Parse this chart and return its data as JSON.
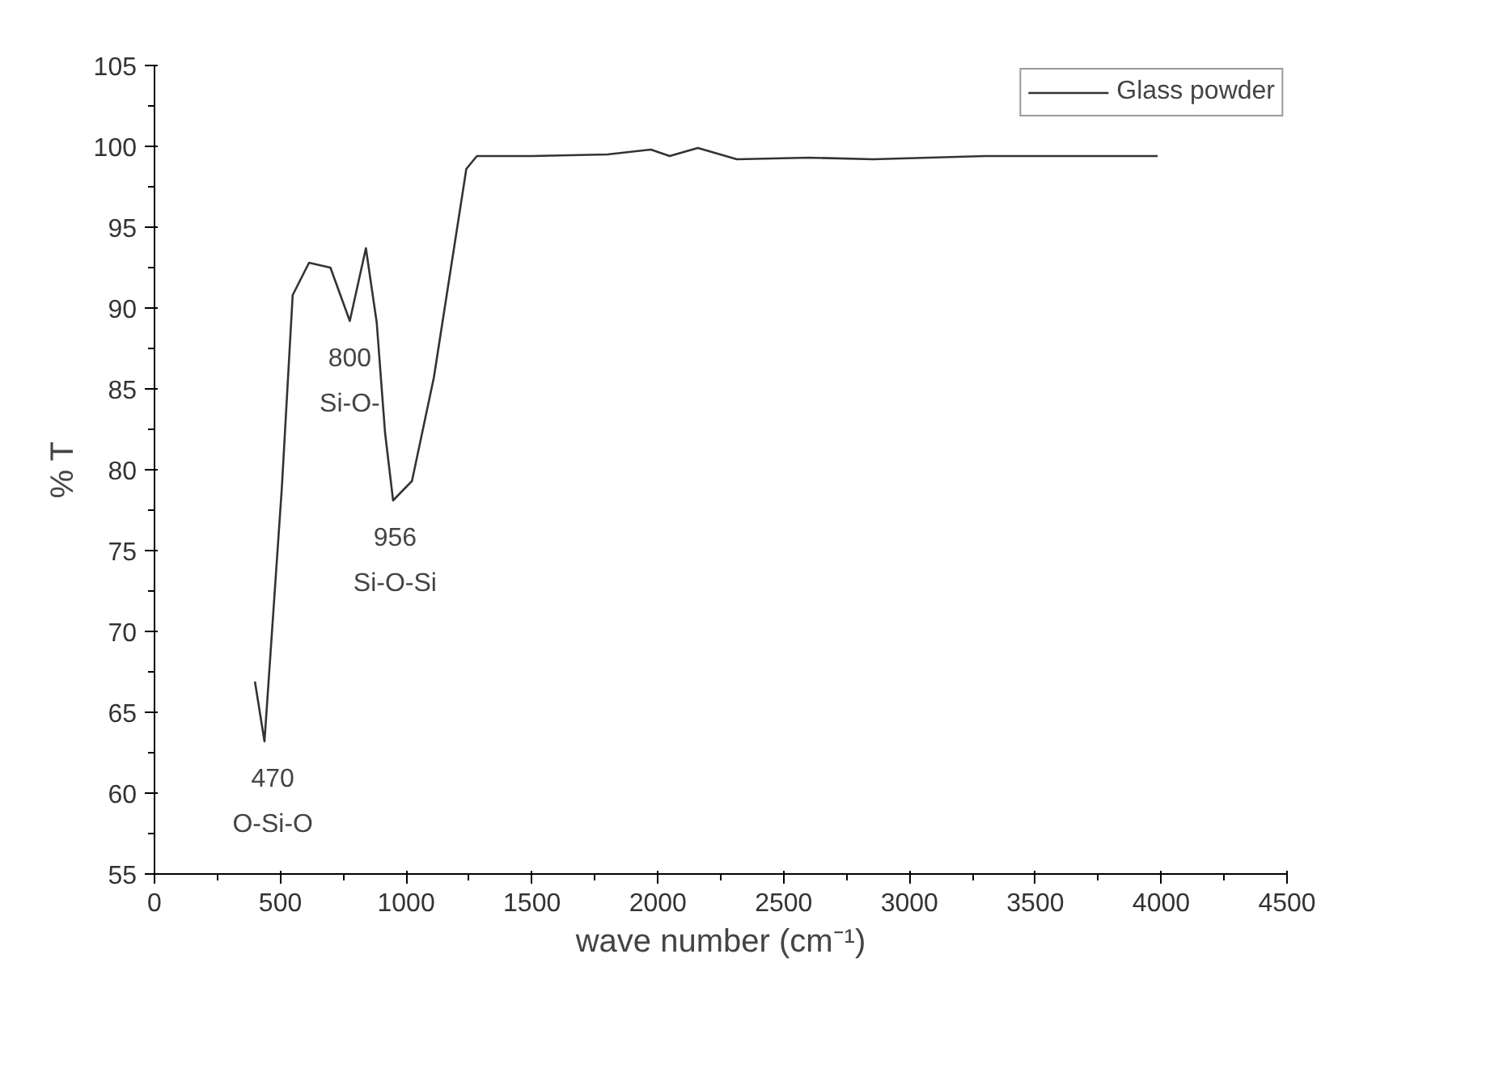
{
  "chart_data": {
    "type": "line",
    "xlabel": "wave number (cm⁻¹)",
    "ylabel": "% T",
    "x": [
      399,
      437,
      506,
      549,
      614,
      699,
      776,
      840,
      883,
      916,
      948,
      1023,
      1110,
      1239,
      1281,
      1500,
      1800,
      1972,
      2047,
      2159,
      2314,
      2600,
      2855,
      3300,
      3986
    ],
    "series": [
      {
        "name": "Glass powder",
        "color": "#333333",
        "values": [
          66.9,
          63.2,
          78.9,
          90.8,
          92.8,
          92.5,
          89.2,
          93.7,
          89.1,
          82.3,
          78.1,
          79.3,
          85.7,
          98.6,
          99.4,
          99.4,
          99.5,
          99.8,
          99.4,
          99.9,
          99.2,
          99.3,
          99.2,
          99.4,
          99.4
        ]
      }
    ],
    "annotations": [
      {
        "text": "470",
        "x": 470,
        "y": 63.2
      },
      {
        "text": "O-Si-O",
        "x": 470,
        "y": 63.2
      },
      {
        "text": "800",
        "x": 776,
        "y": 89.2
      },
      {
        "text": "Si-O-",
        "x": 776,
        "y": 89.2
      },
      {
        "text": "956",
        "x": 956,
        "y": 78.1
      },
      {
        "text": "Si-O-Si",
        "x": 956,
        "y": 78.1
      }
    ],
    "xlim": [
      0,
      4500
    ],
    "xticks": [
      0,
      500,
      1000,
      1500,
      2000,
      2500,
      3000,
      3500,
      4000,
      4500
    ],
    "ylim": [
      55,
      105
    ],
    "yticks": [
      55,
      60,
      65,
      70,
      75,
      80,
      85,
      90,
      95,
      100,
      105
    ],
    "grid": false,
    "legend": "top right",
    "marker": "none",
    "line_style": "solid"
  }
}
